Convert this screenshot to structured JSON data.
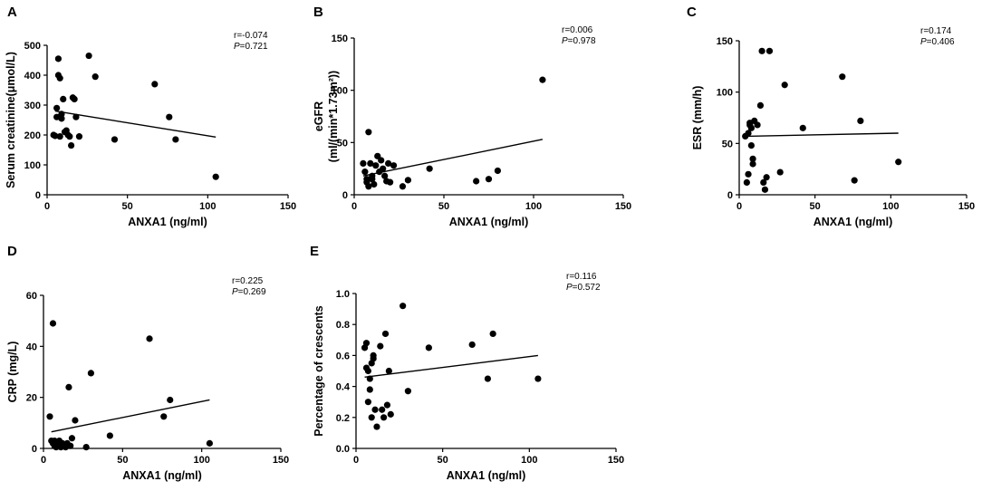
{
  "chart_data": [
    {
      "type": "scatter",
      "panel": "A",
      "xlabel": "ANXA1 (ng/ml)",
      "ylabel": "Serum creatinine(μmol/L)",
      "xlim": [
        0,
        150
      ],
      "ylim": [
        0,
        500
      ],
      "xticks": [
        0,
        50,
        100,
        150
      ],
      "yticks": [
        0,
        100,
        200,
        300,
        400,
        500
      ],
      "stat_r": "r=-0.074",
      "stat_p_label": "P",
      "stat_p_value": "=0.721",
      "fit": {
        "x": [
          5,
          105
        ],
        "y": [
          280,
          193
        ]
      },
      "x": [
        4,
        5,
        6,
        6,
        7,
        7,
        8,
        8,
        9,
        9,
        10,
        11,
        12,
        13,
        14,
        15,
        16,
        17,
        18,
        20,
        26,
        30,
        42,
        67,
        76,
        80,
        105
      ],
      "y": [
        200,
        197,
        290,
        260,
        455,
        400,
        390,
        195,
        270,
        255,
        320,
        210,
        215,
        200,
        195,
        165,
        325,
        320,
        260,
        195,
        465,
        395,
        185,
        370,
        260,
        185,
        60
      ]
    },
    {
      "type": "scatter",
      "panel": "B",
      "xlabel": "ANXA1 (ng/ml)",
      "ylabel_line1": "eGFR",
      "ylabel_line2": "(ml/(min*1.73m²))",
      "xlim": [
        0,
        150
      ],
      "ylim": [
        0,
        150
      ],
      "xticks": [
        0,
        50,
        100,
        150
      ],
      "yticks": [
        0,
        50,
        100,
        150
      ],
      "stat_r": "r=0.006",
      "stat_p_label": "P",
      "stat_p_value": "=0.978",
      "fit": {
        "x": [
          5,
          105
        ],
        "y": [
          18,
          53
        ]
      },
      "x": [
        5,
        6,
        7,
        7,
        8,
        8,
        9,
        10,
        10,
        11,
        12,
        13,
        14,
        15,
        16,
        17,
        18,
        19,
        20,
        22,
        27,
        30,
        42,
        68,
        75,
        80,
        105
      ],
      "y": [
        30,
        22,
        15,
        12,
        60,
        8,
        30,
        18,
        15,
        10,
        28,
        37,
        22,
        33,
        25,
        18,
        13,
        30,
        12,
        28,
        8,
        14,
        25,
        13,
        15,
        23,
        110
      ]
    },
    {
      "type": "scatter",
      "panel": "C",
      "xlabel": "ANXA1 (ng/ml)",
      "ylabel": "ESR (mm/h)",
      "xlim": [
        0,
        150
      ],
      "ylim": [
        0,
        150
      ],
      "xticks": [
        0,
        50,
        100,
        150
      ],
      "yticks": [
        0,
        50,
        100,
        150
      ],
      "stat_r": "r=0.174",
      "stat_p_label": "P",
      "stat_p_value": "=0.406",
      "fit": {
        "x": [
          5,
          105
        ],
        "y": [
          57,
          60
        ]
      },
      "x": [
        4,
        5,
        6,
        6,
        7,
        7,
        8,
        8,
        9,
        9,
        10,
        12,
        14,
        15,
        16,
        17,
        18,
        20,
        27,
        30,
        42,
        68,
        76,
        80,
        105
      ],
      "y": [
        57,
        12,
        60,
        20,
        68,
        70,
        65,
        48,
        35,
        30,
        72,
        68,
        87,
        140,
        12,
        5,
        17,
        140,
        22,
        107,
        65,
        115,
        14,
        72,
        32
      ]
    },
    {
      "type": "scatter",
      "panel": "D",
      "xlabel": "ANXA1 (ng/ml)",
      "ylabel": "CRP (mg/L)",
      "xlim": [
        0,
        150
      ],
      "ylim": [
        0,
        60
      ],
      "xticks": [
        0,
        50,
        100,
        150
      ],
      "yticks": [
        0,
        20,
        40,
        60
      ],
      "stat_r": "r=0.225",
      "stat_p_label": "P",
      "stat_p_value": "=0.269",
      "fit": {
        "x": [
          5,
          105
        ],
        "y": [
          6.5,
          19
        ]
      },
      "x": [
        4,
        5,
        6,
        6,
        7,
        7,
        8,
        8,
        9,
        10,
        11,
        12,
        13,
        14,
        15,
        16,
        17,
        18,
        20,
        27,
        30,
        42,
        67,
        76,
        80,
        105
      ],
      "y": [
        12.5,
        3,
        49,
        2,
        1,
        3,
        0.5,
        2,
        1,
        3,
        0.5,
        2,
        1,
        0.5,
        2,
        24,
        1,
        4,
        11,
        0.5,
        29.5,
        5,
        43,
        12.5,
        19,
        2
      ]
    },
    {
      "type": "scatter",
      "panel": "E",
      "xlabel": "ANXA1 (ng/ml)",
      "ylabel": "Percentage of crescents",
      "xlim": [
        0,
        150
      ],
      "ylim": [
        0,
        1.0
      ],
      "xticks": [
        0,
        50,
        100,
        150
      ],
      "yticks": [
        0.0,
        0.2,
        0.4,
        0.6,
        0.8,
        1.0
      ],
      "stat_r": "r=0.116",
      "stat_p_label": "P",
      "stat_p_value": "=0.572",
      "fit": {
        "x": [
          5,
          105
        ],
        "y": [
          0.46,
          0.6
        ]
      },
      "x": [
        5,
        6,
        6,
        7,
        7,
        8,
        8,
        9,
        9,
        10,
        10,
        11,
        12,
        14,
        15,
        16,
        17,
        18,
        19,
        20,
        27,
        30,
        42,
        67,
        76,
        79,
        105
      ],
      "y": [
        0.65,
        0.68,
        0.52,
        0.5,
        0.3,
        0.45,
        0.38,
        0.2,
        0.55,
        0.6,
        0.58,
        0.25,
        0.14,
        0.66,
        0.25,
        0.2,
        0.74,
        0.28,
        0.5,
        0.22,
        0.92,
        0.37,
        0.65,
        0.67,
        0.45,
        0.74,
        0.45
      ]
    }
  ]
}
